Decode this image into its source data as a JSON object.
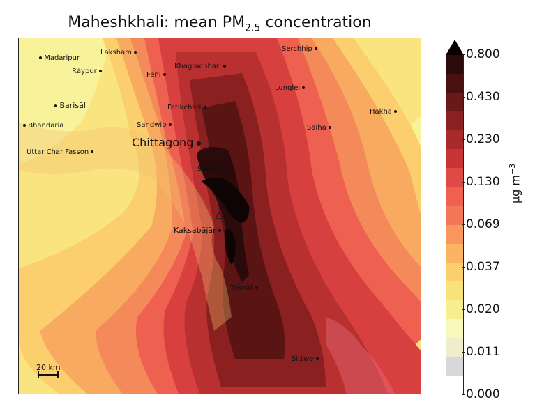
{
  "title": {
    "main": "Maheshkhali: mean PM",
    "sub": "2.5",
    "rest": " concentration"
  },
  "colors": {
    "dark": "#2a0a0a",
    "darkred": "#5a1414",
    "red1": "#8a2020",
    "red2": "#b83030",
    "red3": "#d84040",
    "red4": "#ee6050",
    "orange1": "#f48a5a",
    "orange2": "#f8aa60",
    "yellow1": "#fbd070",
    "yellow2": "#f9e480",
    "yellow3": "#f8f29a",
    "pale": "#f4f4d0",
    "grey": "#d8d8d8",
    "white": "#ffffff"
  },
  "cities": {
    "madaripur": "Madaripur",
    "laksham": "Laksham",
    "raypur": "Rāypur",
    "feni": "Feni",
    "khagrachhari": "Khagrachhari",
    "serchhip": "Serchhip",
    "lunglei": "Lunglei",
    "barisal": "Barisāl",
    "fatikchari": "Fatikchari",
    "hakha": "Hakha",
    "bhandaria": "Bhandaria",
    "sandwip": "Sandwip",
    "saiha": "Saiha",
    "chittagong": "Chittagong",
    "uttar": "Uttar Char Fasson",
    "satkania": "Satkania",
    "kaksabajar": "Kaksabājār",
    "teknaf": "Teknāf",
    "sittwe": "Sittwe"
  },
  "scalebar": "20 km",
  "colorbar": {
    "ticks": [
      "0.800",
      "0.430",
      "0.230",
      "0.130",
      "0.069",
      "0.037",
      "0.020",
      "0.011",
      "0.000"
    ],
    "label_prefix": "μg m",
    "label_exp": "−3",
    "colors": [
      "#2a0a0a",
      "#4a1010",
      "#6a1818",
      "#8a2020",
      "#a82a2a",
      "#c83434",
      "#e04a44",
      "#f06050",
      "#f47858",
      "#f8965e",
      "#fab464",
      "#fbcf6e",
      "#f9e27c",
      "#f8ee90",
      "#f8f8b8",
      "#eeeecc",
      "#d8d8d8",
      "#ffffff"
    ]
  }
}
